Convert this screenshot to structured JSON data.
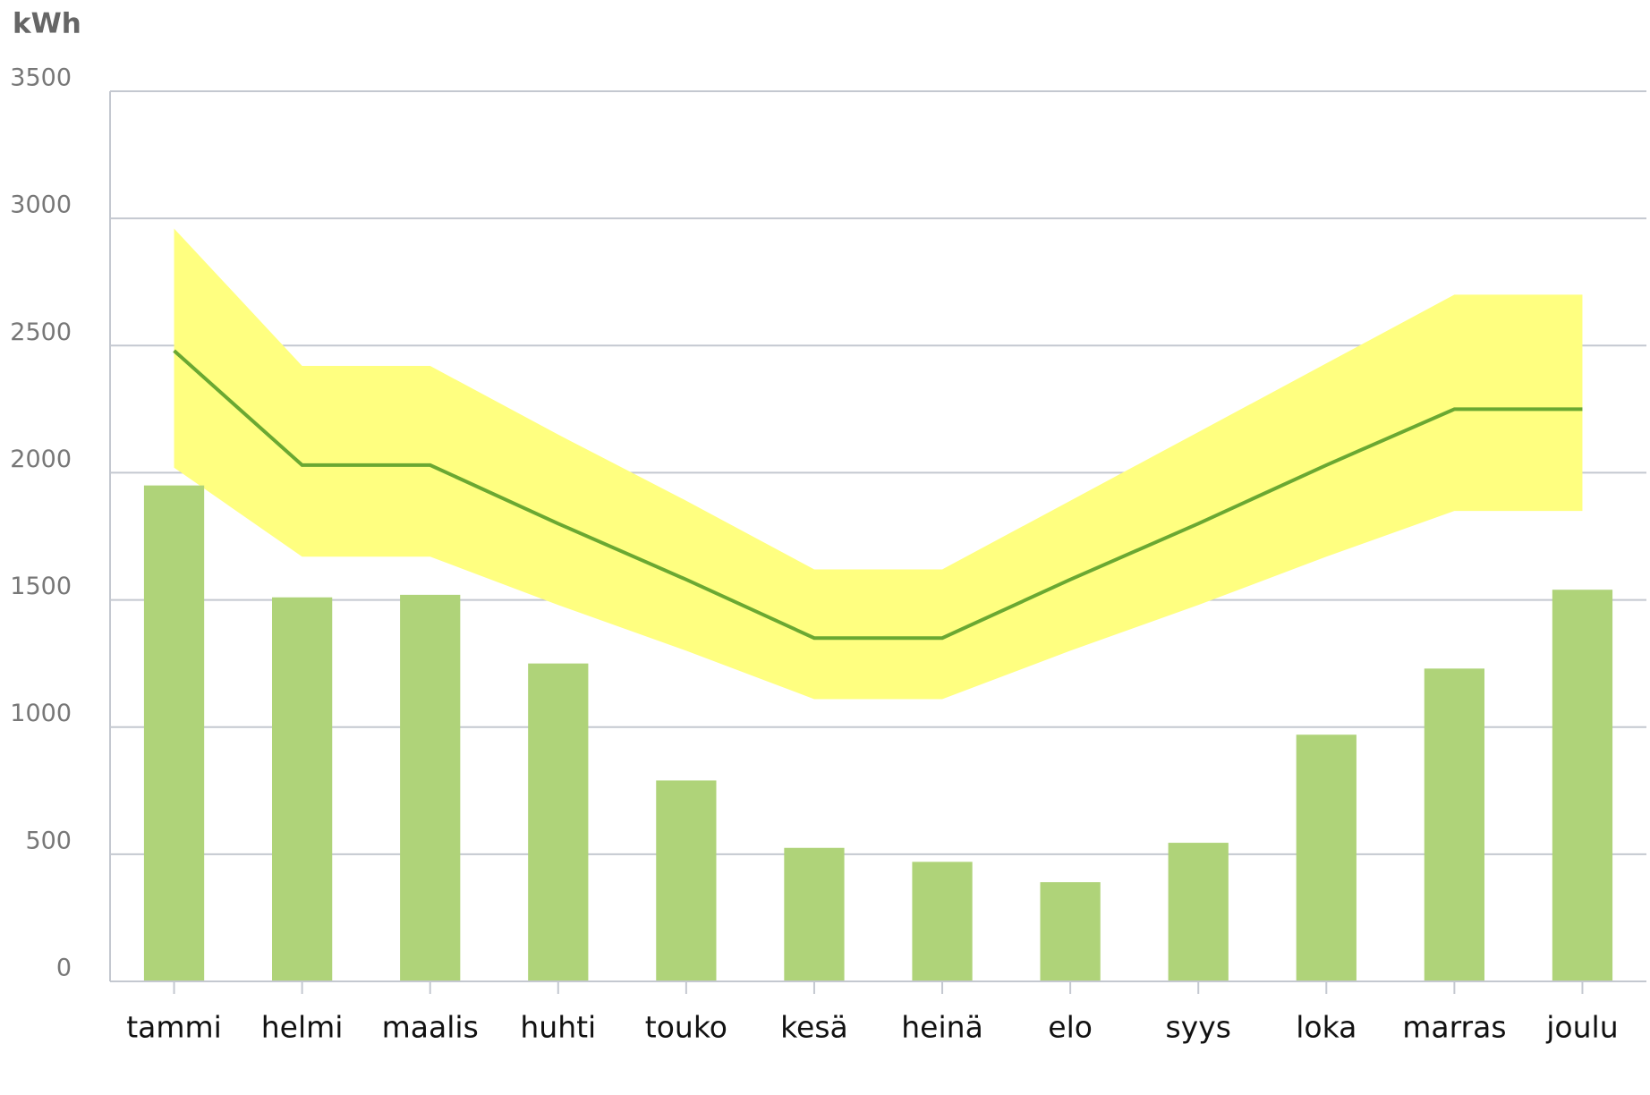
{
  "chart_data": {
    "type": "bar",
    "y_label": "kWh",
    "categories": [
      "tammi",
      "helmi",
      "maalis",
      "huhti",
      "touko",
      "kesä",
      "heinä",
      "elo",
      "syys",
      "loka",
      "marras",
      "joulu"
    ],
    "series": [
      {
        "type": "band",
        "color": "#ffff80",
        "low": [
          2020,
          1670,
          1670,
          1480,
          1300,
          1110,
          1110,
          1300,
          1480,
          1670,
          1850,
          1850
        ],
        "high": [
          2960,
          2420,
          2420,
          2150,
          1890,
          1620,
          1620,
          1890,
          2160,
          2430,
          2700,
          2700
        ]
      },
      {
        "type": "bar",
        "color": "#afd379",
        "values": [
          1950,
          1510,
          1520,
          1250,
          790,
          525,
          470,
          390,
          545,
          970,
          1230,
          1540
        ]
      },
      {
        "type": "line",
        "color": "#6aa832",
        "values": [
          2480,
          2030,
          2030,
          1800,
          1580,
          1350,
          1350,
          1580,
          1800,
          2030,
          2250,
          2250
        ]
      }
    ],
    "ylim": [
      0,
      3500
    ],
    "yticks": [
      0,
      500,
      1000,
      1500,
      2000,
      2500,
      3000,
      3500
    ],
    "grid": true
  }
}
